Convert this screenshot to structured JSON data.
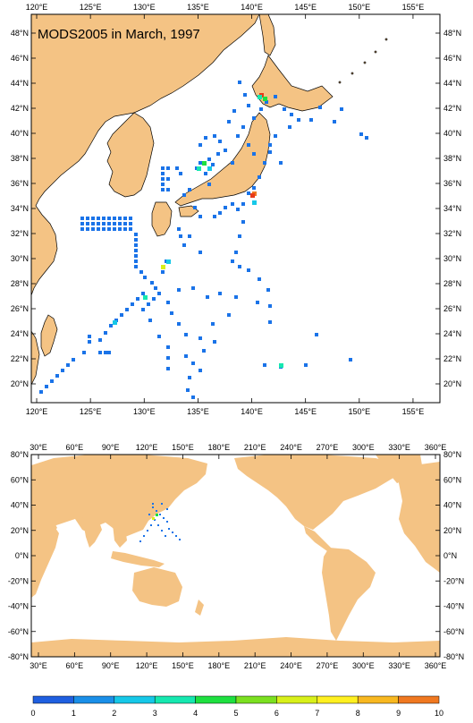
{
  "top_map": {
    "title": "MODS2005 in March, 1997",
    "lon_labels": [
      "120°E",
      "125°E",
      "130°E",
      "135°E",
      "140°E",
      "145°E",
      "150°E",
      "155°E"
    ],
    "lat_labels": [
      "20°N",
      "22°N",
      "24°N",
      "26°N",
      "28°N",
      "30°N",
      "32°N",
      "34°N",
      "36°N",
      "38°N",
      "40°N",
      "42°N",
      "44°N",
      "46°N",
      "48°N"
    ],
    "lon_range": [
      119.5,
      157.5
    ],
    "lat_range": [
      18.5,
      49.5
    ]
  },
  "bottom_map": {
    "lon_labels": [
      "30°E",
      "60°E",
      "90°E",
      "120°E",
      "150°E",
      "180°E",
      "210°E",
      "240°E",
      "270°E",
      "300°E",
      "330°E",
      "360°E"
    ],
    "lat_labels": [
      "80°N",
      "60°N",
      "40°N",
      "20°N",
      "0°N",
      "-20°N",
      "-40°N",
      "-60°N",
      "-80°N"
    ],
    "lon_range": [
      20,
      370
    ],
    "lat_range": [
      -80,
      80
    ]
  },
  "colorbar": {
    "labels": [
      "0",
      "1",
      "2",
      "3",
      "4",
      "5",
      "6",
      "7",
      "8",
      "9",
      "10"
    ],
    "colors": [
      "#1f5fe0",
      "#1a8fe8",
      "#16c8e8",
      "#16e8b0",
      "#1ee040",
      "#7be020",
      "#d8f01a",
      "#fff020",
      "#f8b820",
      "#f07820",
      "#e83a1a"
    ]
  },
  "colors": {
    "land": "#f4c384",
    "ocean": "#ffffff",
    "coast": "#000000",
    "obs_low": "#1a73e8"
  }
}
